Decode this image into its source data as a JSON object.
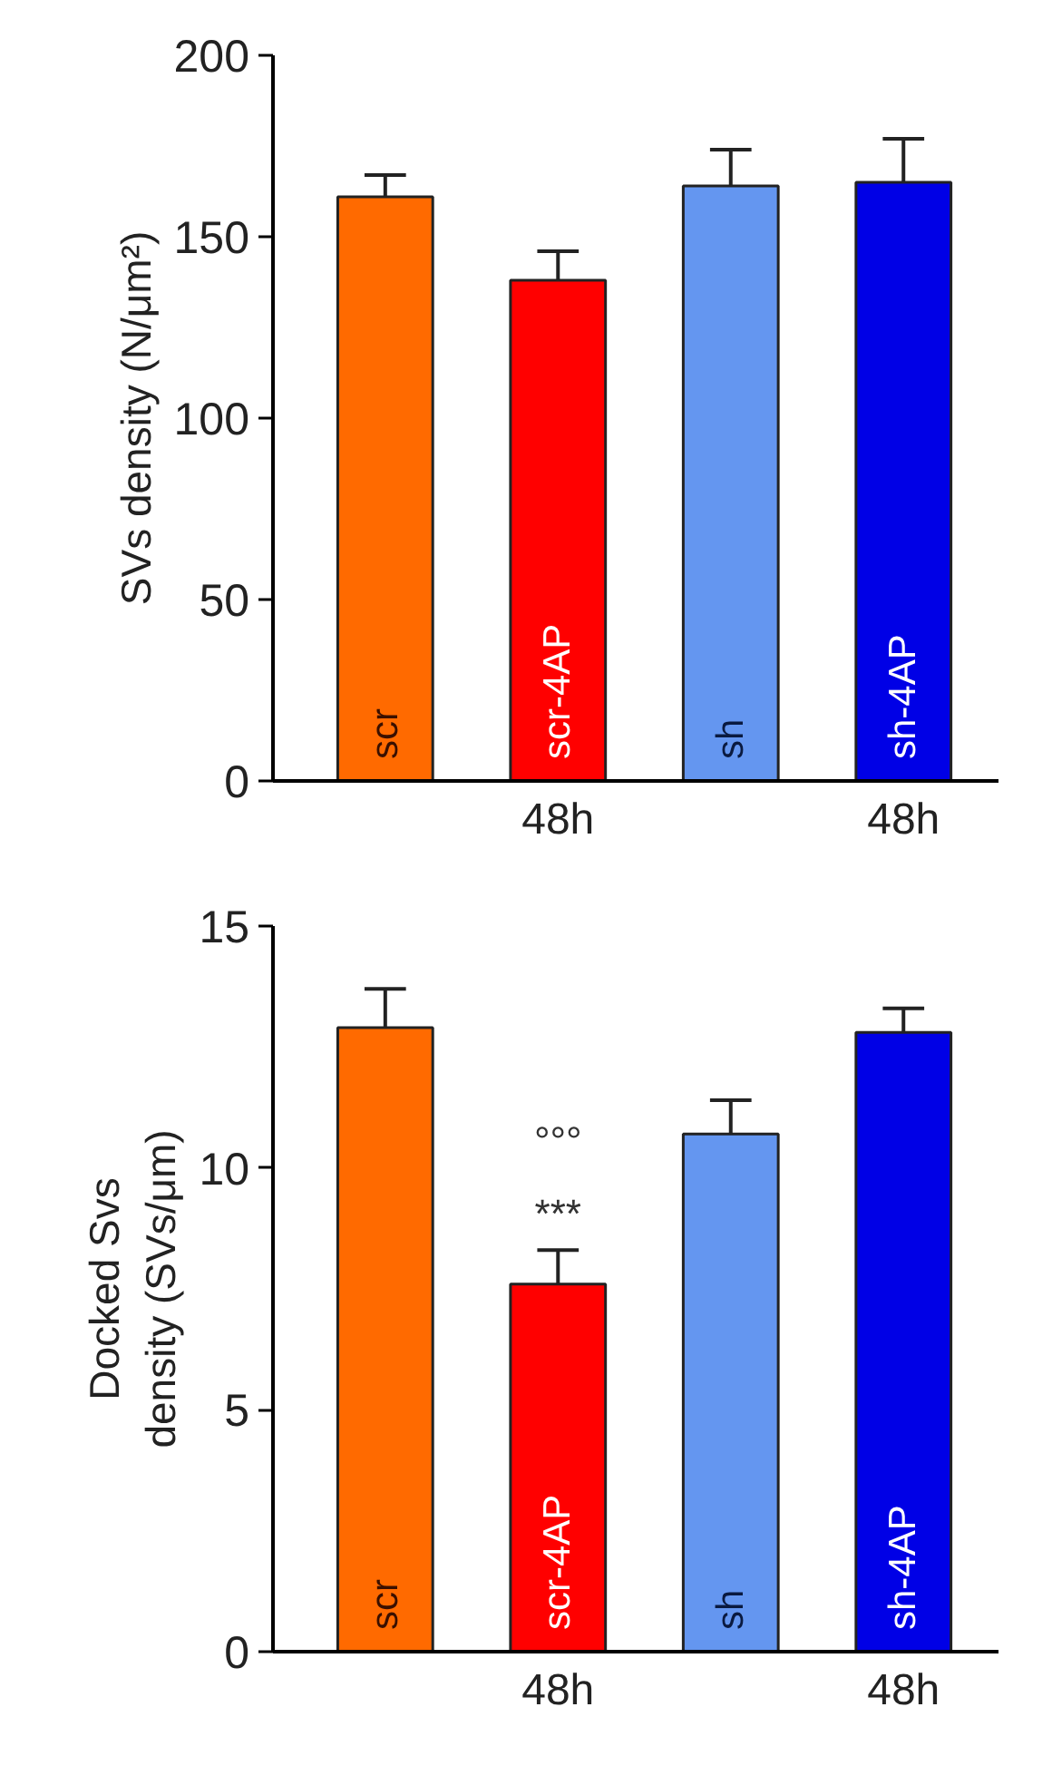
{
  "chart_data": [
    {
      "type": "bar",
      "ylabel": "SVs density (N/μm²)",
      "categories": [
        null,
        "48h",
        null,
        "48h"
      ],
      "values": [
        161,
        138,
        164,
        165
      ],
      "errors": [
        [
          161,
          167
        ],
        [
          138,
          146
        ],
        [
          164,
          174
        ],
        [
          165,
          177
        ]
      ],
      "colors": [
        "#ff6a00",
        "#ff0000",
        "#6496f0",
        "#0000e6"
      ],
      "ylim": [
        0,
        200
      ],
      "yticks": [
        0,
        50,
        100,
        150,
        200
      ],
      "grid": false,
      "annotations": [
        "scr",
        "scr-4AP",
        "sh",
        "sh-4AP"
      ]
    },
    {
      "type": "bar",
      "ylabel": "Docked Svs\ndensity (SVs/μm)",
      "categories": [
        null,
        "48h",
        null,
        "48h"
      ],
      "values": [
        12.9,
        7.6,
        10.7,
        12.8
      ],
      "errors": [
        [
          12.9,
          13.7
        ],
        [
          7.6,
          8.3
        ],
        [
          10.7,
          11.4
        ],
        [
          12.8,
          13.3
        ]
      ],
      "colors": [
        "#ff6a00",
        "#ff0000",
        "#6496f0",
        "#0000e6"
      ],
      "ylim": [
        0,
        15
      ],
      "yticks": [
        0,
        5,
        10,
        15
      ],
      "grid": false,
      "annotations": [
        "scr",
        "scr-4AP",
        "sh",
        "sh-4AP",
        "***",
        "°°°"
      ]
    }
  ]
}
